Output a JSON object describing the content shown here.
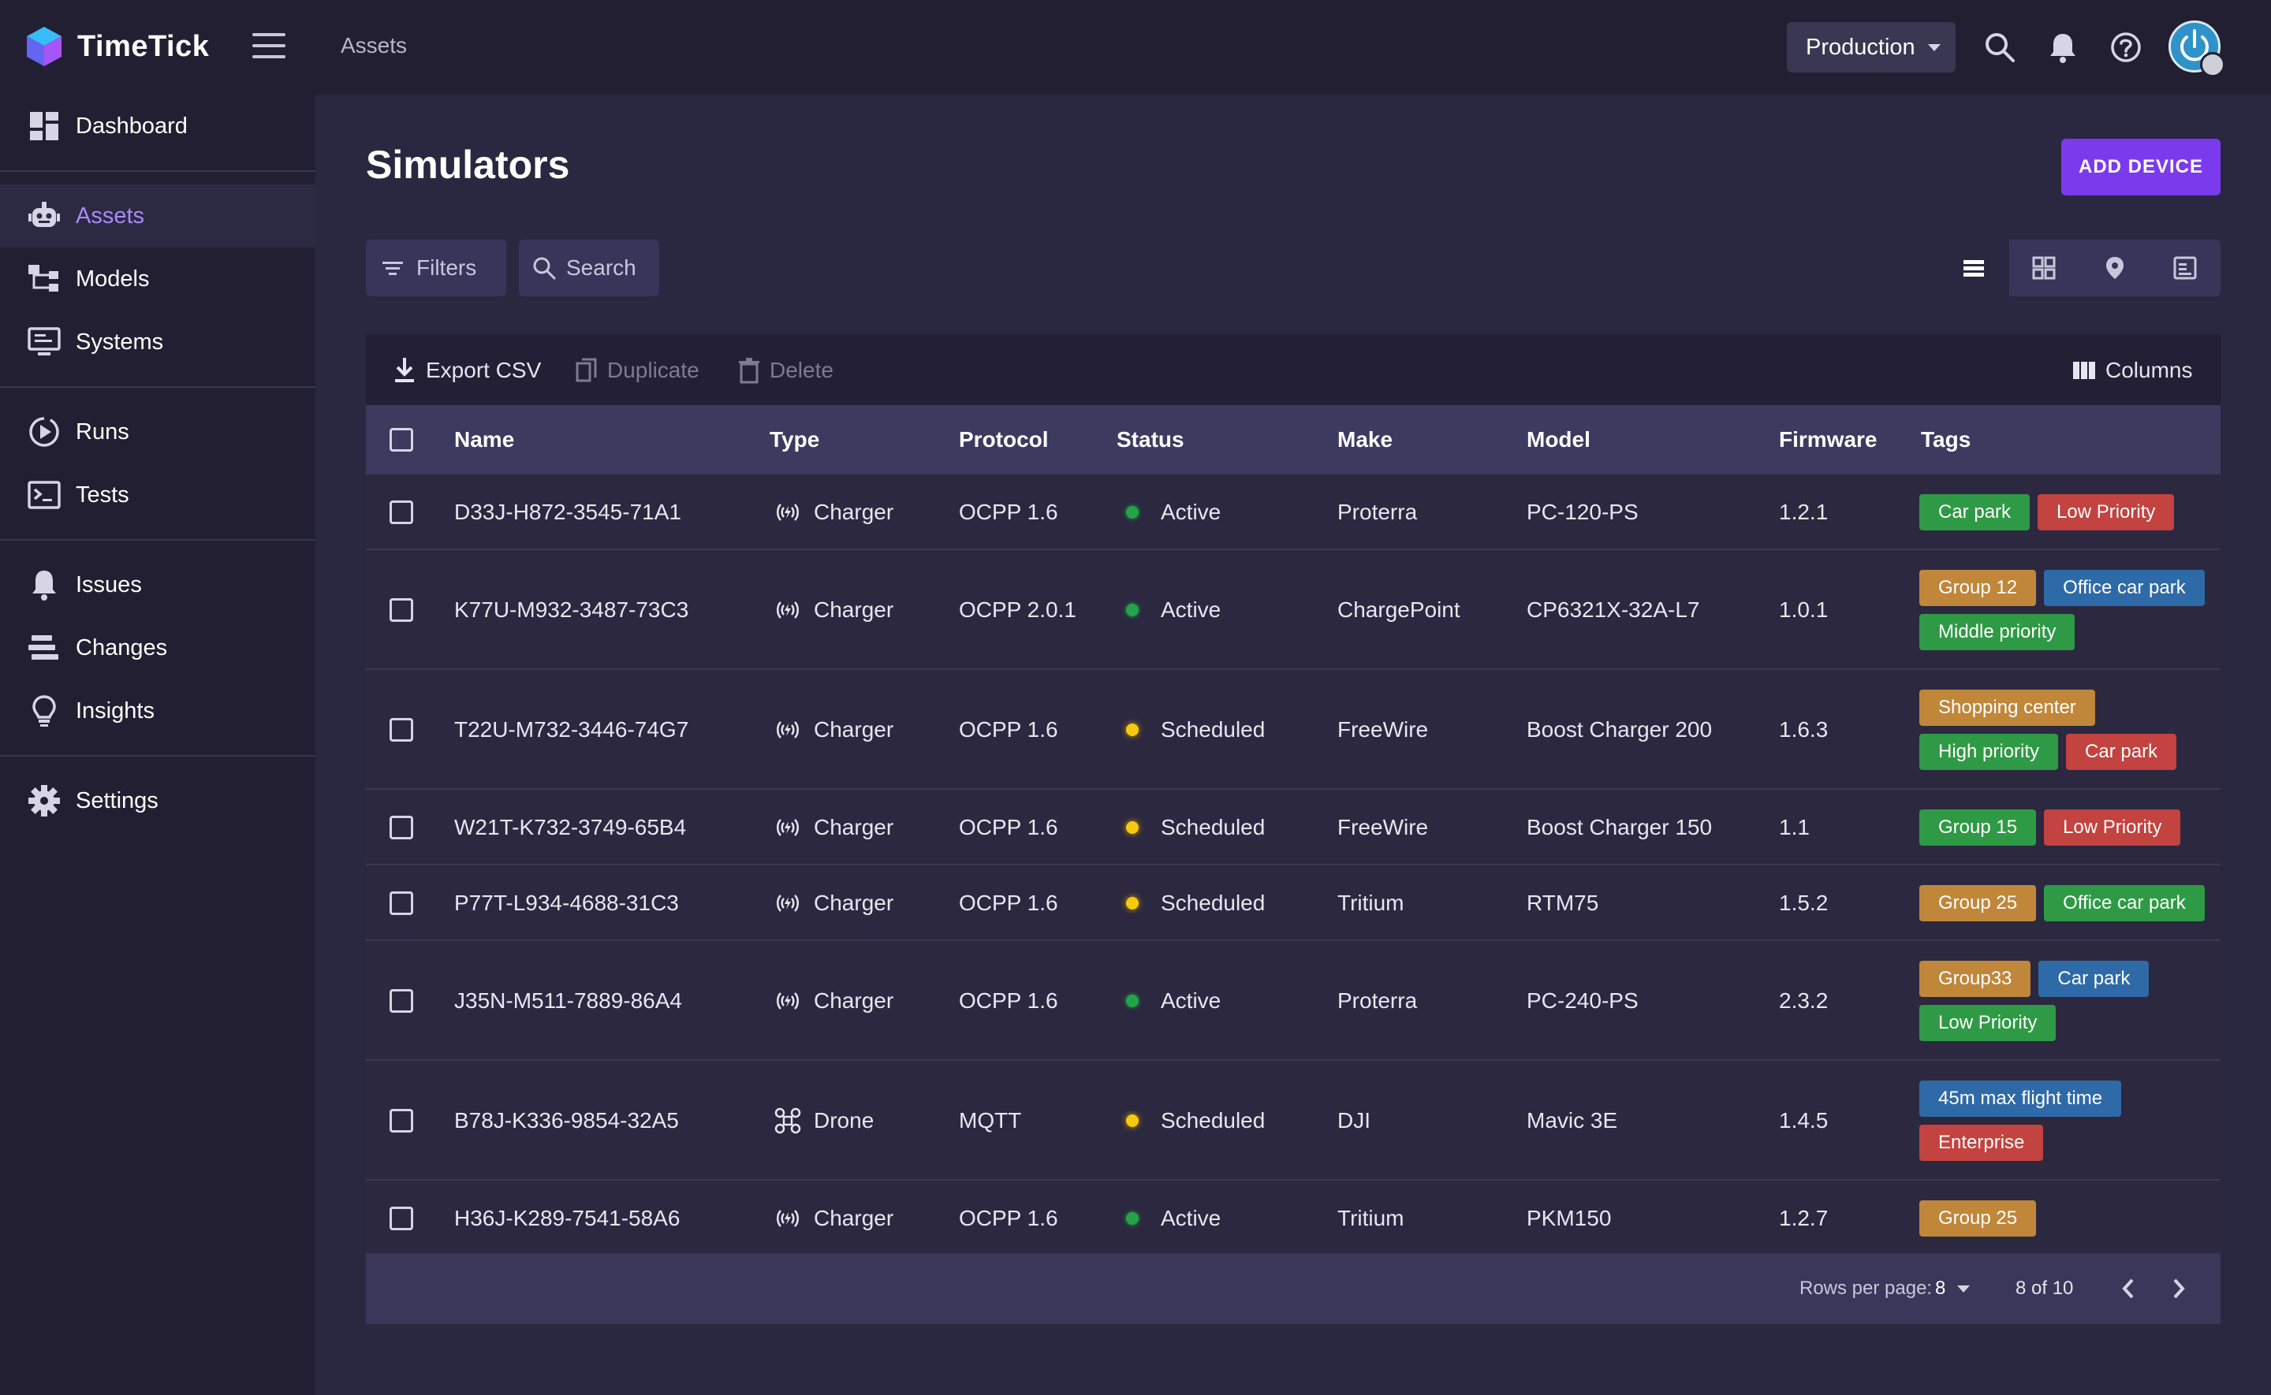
{
  "app": {
    "name": "TimeTick"
  },
  "header": {
    "breadcrumb": "Assets",
    "environment": "Production"
  },
  "sidebar": {
    "items": [
      {
        "label": "Dashboard",
        "icon": "dashboard-icon"
      },
      {
        "label": "Assets",
        "icon": "robot-icon",
        "active": true
      },
      {
        "label": "Models",
        "icon": "hierarchy-icon"
      },
      {
        "label": "Systems",
        "icon": "monitor-icon"
      },
      {
        "label": "Runs",
        "icon": "play-circle-icon"
      },
      {
        "label": "Tests",
        "icon": "terminal-icon"
      },
      {
        "label": "Issues",
        "icon": "bell-icon"
      },
      {
        "label": "Changes",
        "icon": "bars-icon"
      },
      {
        "label": "Insights",
        "icon": "bulb-icon"
      },
      {
        "label": "Settings",
        "icon": "gear-icon"
      }
    ]
  },
  "page": {
    "title": "Simulators",
    "add_button": "ADD DEVICE",
    "filters_label": "Filters",
    "search_label": "Search"
  },
  "table": {
    "toolbar": {
      "export": "Export CSV",
      "duplicate": "Duplicate",
      "delete": "Delete",
      "columns": "Columns"
    },
    "headers": [
      "Name",
      "Type",
      "Protocol",
      "Status",
      "Make",
      "Model",
      "Firmware",
      "Tags"
    ],
    "rows": [
      {
        "name": "D33J-H872-3545-71A1",
        "type": "Charger",
        "protocol": "OCPP 1.6",
        "status": "Active",
        "make": "Proterra",
        "model": "PC-120-PS",
        "firmware": "1.2.1",
        "tags": [
          {
            "label": "Car park",
            "color": "green"
          },
          {
            "label": "Low Priority",
            "color": "red"
          }
        ]
      },
      {
        "name": "K77U-M932-3487-73C3",
        "type": "Charger",
        "protocol": "OCPP 2.0.1",
        "status": "Active",
        "make": "ChargePoint",
        "model": "CP6321X-32A-L7",
        "firmware": "1.0.1",
        "tags": [
          {
            "label": "Group 12",
            "color": "orange"
          },
          {
            "label": "Office car park",
            "color": "blue"
          },
          {
            "label": "Middle priority",
            "color": "green"
          }
        ]
      },
      {
        "name": "T22U-M732-3446-74G7",
        "type": "Charger",
        "protocol": "OCPP 1.6",
        "status": "Scheduled",
        "make": "FreeWire",
        "model": "Boost Charger 200",
        "firmware": "1.6.3",
        "tags": [
          {
            "label": "Shopping center",
            "color": "orange"
          },
          {
            "label": "High priority",
            "color": "green"
          },
          {
            "label": "Car park",
            "color": "red"
          }
        ]
      },
      {
        "name": "W21T-K732-3749-65B4",
        "type": "Charger",
        "protocol": "OCPP 1.6",
        "status": "Scheduled",
        "make": "FreeWire",
        "model": "Boost Charger 150",
        "firmware": "1.1",
        "tags": [
          {
            "label": "Group 15",
            "color": "green"
          },
          {
            "label": "Low Priority",
            "color": "red"
          }
        ]
      },
      {
        "name": "P77T-L934-4688-31C3",
        "type": "Charger",
        "protocol": "OCPP 1.6",
        "status": "Scheduled",
        "make": "Tritium",
        "model": "RTM75",
        "firmware": "1.5.2",
        "tags": [
          {
            "label": "Group 25",
            "color": "orange"
          },
          {
            "label": "Office car park",
            "color": "green"
          }
        ]
      },
      {
        "name": "J35N-M511-7889-86A4",
        "type": "Charger",
        "protocol": "OCPP 1.6",
        "status": "Active",
        "make": "Proterra",
        "model": "PC-240-PS",
        "firmware": "2.3.2",
        "tags": [
          {
            "label": "Group33",
            "color": "orange"
          },
          {
            "label": "Car park",
            "color": "blue"
          },
          {
            "label": "Low Priority",
            "color": "green"
          }
        ]
      },
      {
        "name": "B78J-K336-9854-32A5",
        "type": "Drone",
        "protocol": "MQTT",
        "status": "Scheduled",
        "make": "DJI",
        "model": "Mavic 3E",
        "firmware": "1.4.5",
        "tags": [
          {
            "label": "45m max flight time",
            "color": "blue"
          },
          {
            "label": "Enterprise",
            "color": "red"
          }
        ]
      },
      {
        "name": "H36J-K289-7541-58A6",
        "type": "Charger",
        "protocol": "OCPP 1.6",
        "status": "Active",
        "make": "Tritium",
        "model": "PKM150",
        "firmware": "1.2.7",
        "tags": [
          {
            "label": "Group 25",
            "color": "orange"
          }
        ]
      }
    ],
    "footer": {
      "rows_per_page_label": "Rows per page:",
      "rows_per_page_value": "8",
      "range": "8 of 10"
    }
  },
  "colors": {
    "accent": "#7c3aed",
    "active_nav": "#a78bfa",
    "active_status": "#22a447",
    "scheduled_status": "#f6c90e"
  }
}
